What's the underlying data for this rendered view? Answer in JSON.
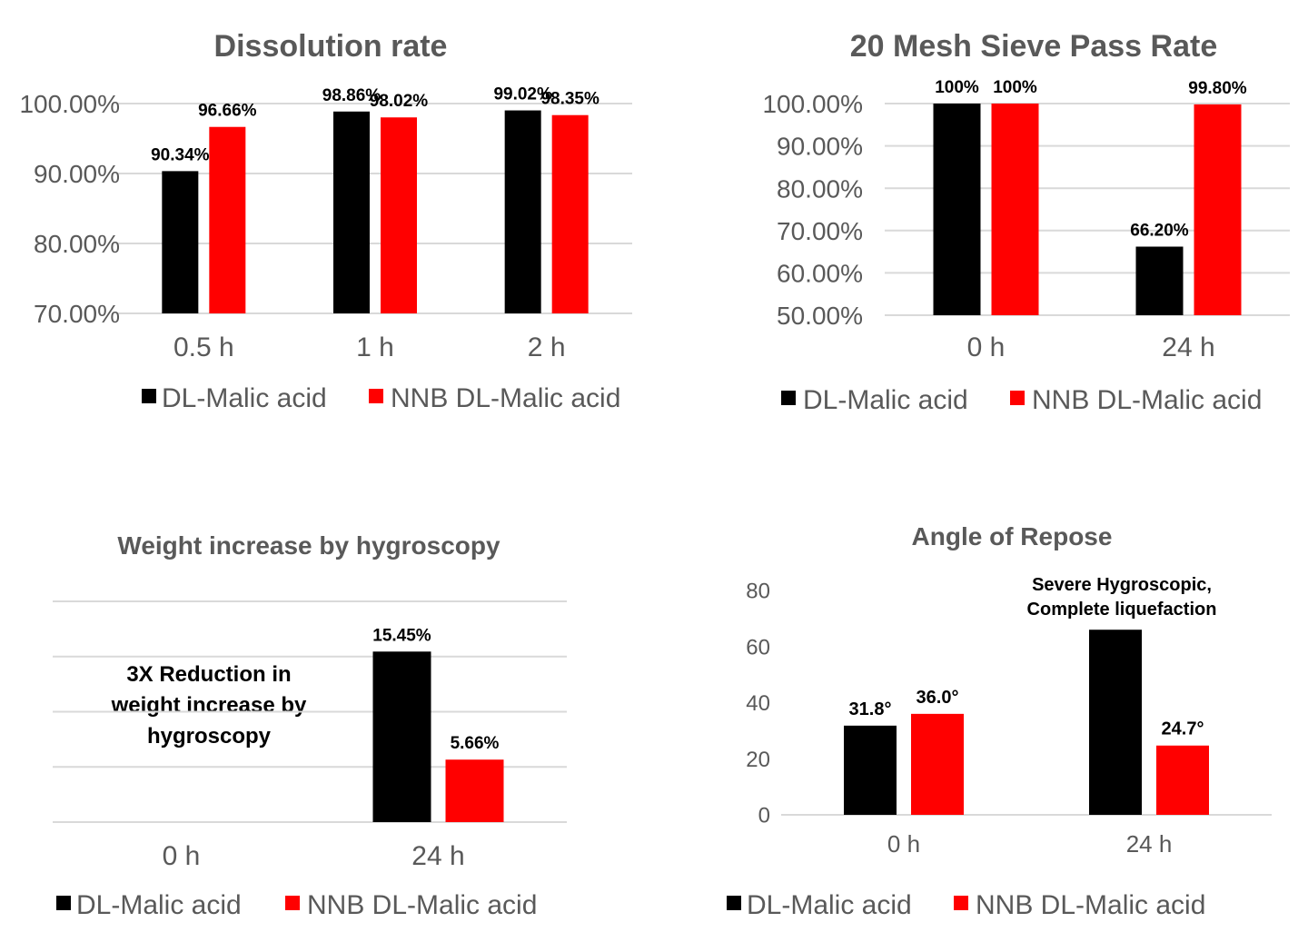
{
  "colors": {
    "dl": "#000000",
    "nnb": "#ff0000",
    "grid": "#d9d9d9",
    "text": "#595959"
  },
  "chart_data": [
    {
      "type": "bar",
      "title": "Dissolution rate",
      "categories": [
        "0.5 h",
        "1 h",
        "2 h"
      ],
      "series": [
        {
          "name": "DL-Malic acid",
          "values": [
            90.34,
            98.86,
            99.02
          ],
          "labels": [
            "90.34%",
            "98.86%",
            "99.02%"
          ]
        },
        {
          "name": "NNB DL-Malic acid",
          "values": [
            96.66,
            98.02,
            98.35
          ],
          "labels": [
            "96.66%",
            "98.02%",
            "98.35%"
          ]
        }
      ],
      "ylim": [
        70,
        100
      ],
      "yticks": [
        "100.00%",
        "90.00%",
        "80.00%",
        "70.00%"
      ],
      "legend_position": "bottom",
      "grid": true
    },
    {
      "type": "bar",
      "title": "20 Mesh Sieve Pass Rate",
      "categories": [
        "0 h",
        "24 h"
      ],
      "series": [
        {
          "name": "DL-Malic acid",
          "values": [
            100,
            66.2
          ],
          "labels": [
            "100%",
            "66.20%"
          ]
        },
        {
          "name": "NNB DL-Malic acid",
          "values": [
            100,
            99.8
          ],
          "labels": [
            "100%",
            "99.80%"
          ]
        }
      ],
      "ylim": [
        50,
        100
      ],
      "yticks": [
        "100.00%",
        "90.00%",
        "80.00%",
        "70.00%",
        "60.00%",
        "50.00%"
      ],
      "legend_position": "bottom",
      "grid": true
    },
    {
      "type": "bar",
      "title": "Weight increase by hygroscopy",
      "categories": [
        "0 h",
        "24 h"
      ],
      "series": [
        {
          "name": "DL-Malic acid",
          "values": [
            null,
            15.45
          ],
          "labels": [
            "",
            "15.45%"
          ]
        },
        {
          "name": "NNB DL-Malic acid",
          "values": [
            null,
            5.66
          ],
          "labels": [
            "",
            "5.66%"
          ]
        }
      ],
      "ylim": [
        0,
        20
      ],
      "yticks": [],
      "annotation": [
        "3X Reduction in",
        "weight increase by",
        "hygroscopy"
      ],
      "legend_position": "bottom",
      "grid": true
    },
    {
      "type": "bar",
      "title": "Angle of Repose",
      "categories": [
        "0 h",
        "24 h"
      ],
      "series": [
        {
          "name": "DL-Malic acid",
          "values": [
            31.8,
            66
          ],
          "labels": [
            "31.8°",
            ""
          ]
        },
        {
          "name": "NNB DL-Malic acid",
          "values": [
            36.0,
            24.7
          ],
          "labels": [
            "36.0°",
            "24.7°"
          ]
        }
      ],
      "ylim": [
        0,
        80
      ],
      "yticks": [
        "80",
        "60",
        "40",
        "20",
        "0"
      ],
      "annotation": [
        "Severe Hygroscopic,",
        "Complete liquefaction"
      ],
      "legend_position": "bottom",
      "grid": false
    }
  ]
}
